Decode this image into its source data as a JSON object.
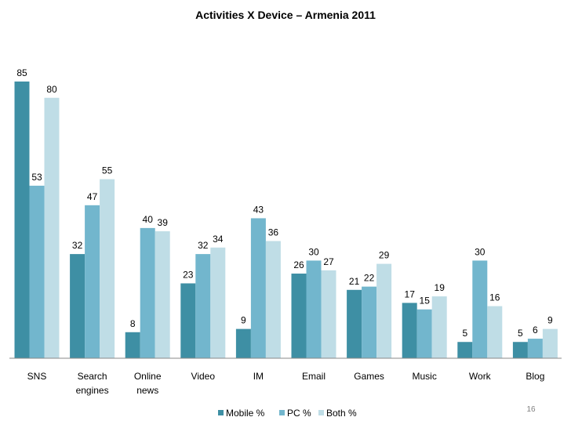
{
  "chart_data": {
    "type": "bar",
    "title": "Activities X Device – Armenia 2011",
    "categories": [
      [
        "SNS"
      ],
      [
        "Search",
        "engines"
      ],
      [
        "Online",
        "news"
      ],
      [
        "Video"
      ],
      [
        "IM"
      ],
      [
        "Email"
      ],
      [
        "Games"
      ],
      [
        "Music"
      ],
      [
        "Work"
      ],
      [
        "Blog"
      ]
    ],
    "series": [
      {
        "name": "Mobile %",
        "color": "#3e8fa4",
        "values": [
          85,
          32,
          8,
          23,
          9,
          26,
          21,
          17,
          5,
          5
        ]
      },
      {
        "name": "PC %",
        "color": "#72b6cd",
        "values": [
          53,
          47,
          40,
          32,
          43,
          30,
          22,
          15,
          30,
          6
        ]
      },
      {
        "name": "Both %",
        "color": "#bfdde6",
        "values": [
          80,
          55,
          39,
          34,
          36,
          27,
          29,
          19,
          16,
          9
        ]
      }
    ],
    "xlabel": "",
    "ylabel": "",
    "ylim": [
      0,
      85
    ],
    "grid": false,
    "legend": "bottom"
  },
  "page_number": "16"
}
